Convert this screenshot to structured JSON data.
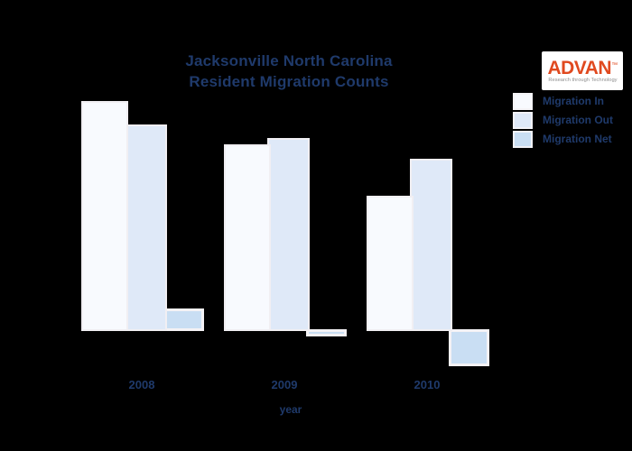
{
  "title": {
    "line1": "Jacksonville North Carolina",
    "line2": "Resident Migration Counts"
  },
  "logo": {
    "name": "ADVAN",
    "trademark": "™",
    "tagline": "Research through Technology"
  },
  "legend": {
    "items": [
      {
        "label": "Migration In",
        "color": "#f8fafe"
      },
      {
        "label": "Migration Out",
        "color": "#dfe9f8"
      },
      {
        "label": "Migration Net",
        "color": "#c9def3"
      }
    ]
  },
  "chart_data": {
    "type": "bar",
    "title": "Jacksonville North Carolina Resident Migration Counts",
    "categories": [
      "2008",
      "2009",
      "2010"
    ],
    "series": [
      {
        "name": "Migration In",
        "color": "#f8fafe",
        "values": [
          10000,
          8100,
          5900
        ]
      },
      {
        "name": "Migration Out",
        "color": "#dfe9f8",
        "values": [
          9000,
          8400,
          7500
        ]
      },
      {
        "name": "Migration Net",
        "color": "#c9def3",
        "values": [
          1000,
          -300,
          -1600
        ]
      }
    ],
    "xlabel": "year",
    "ylabel": "",
    "ylim": [
      -2000,
      10500
    ],
    "grid": false,
    "legend_position": "upper right"
  },
  "colors": {
    "background": "#000000",
    "text_navy": "#1f3a6b",
    "logo_red": "#e0491f",
    "tagline_gray": "#8f8f8f"
  }
}
